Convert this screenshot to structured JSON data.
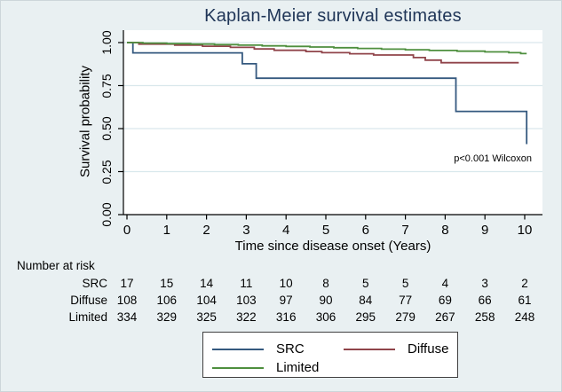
{
  "title": "Kaplan-Meier survival estimates",
  "annotation": "p<0.001 Wilcoxon",
  "colors": {
    "background": "#e9f0f2",
    "plot_background": "#ffffff",
    "gridline": "#d9e8ec",
    "title": "#1f3557",
    "src": "#35597f",
    "diffuse": "#90444a",
    "limited": "#4e8f3e"
  },
  "chart_data": {
    "type": "line",
    "subtype": "kaplan-meier-step",
    "title": "Kaplan-Meier survival estimates",
    "xlabel": "Time since disease onset (Years)",
    "ylabel": "Survival probability",
    "xlim": [
      0,
      10.45
    ],
    "ylim": [
      0,
      1.0
    ],
    "x_ticks": [
      "0",
      "1",
      "2",
      "3",
      "4",
      "5",
      "6",
      "7",
      "8",
      "9",
      "10"
    ],
    "y_ticks": [
      {
        "label": "1.00",
        "value": 1.0
      },
      {
        "label": "0.75",
        "value": 0.75
      },
      {
        "label": "0.50",
        "value": 0.5
      },
      {
        "label": "0.25",
        "value": 0.25
      },
      {
        "label": "0.00",
        "value": 0.0
      }
    ],
    "grid": "horizontal",
    "annotation": {
      "text": "p<0.001 Wilcoxon",
      "x": 10.2,
      "y": 0.3
    },
    "series": [
      {
        "name": "SRC",
        "color": "#35597f",
        "points": [
          [
            0,
            1.0
          ],
          [
            0.15,
            1.0
          ],
          [
            0.15,
            0.94
          ],
          [
            2.9,
            0.94
          ],
          [
            2.9,
            0.877
          ],
          [
            3.25,
            0.877
          ],
          [
            3.25,
            0.793
          ],
          [
            8.27,
            0.793
          ],
          [
            8.27,
            0.6
          ],
          [
            10.05,
            0.6
          ],
          [
            10.05,
            0.41
          ]
        ]
      },
      {
        "name": "Diffuse",
        "color": "#90444a",
        "points": [
          [
            0,
            1.0
          ],
          [
            0.3,
            1.0
          ],
          [
            0.3,
            0.991
          ],
          [
            1.2,
            0.991
          ],
          [
            1.2,
            0.985
          ],
          [
            1.9,
            0.985
          ],
          [
            1.9,
            0.979
          ],
          [
            2.6,
            0.979
          ],
          [
            2.6,
            0.972
          ],
          [
            3.2,
            0.972
          ],
          [
            3.2,
            0.963
          ],
          [
            3.7,
            0.963
          ],
          [
            3.7,
            0.955
          ],
          [
            4.5,
            0.955
          ],
          [
            4.5,
            0.948
          ],
          [
            4.9,
            0.948
          ],
          [
            4.9,
            0.941
          ],
          [
            5.6,
            0.941
          ],
          [
            5.6,
            0.935
          ],
          [
            6.2,
            0.935
          ],
          [
            6.2,
            0.928
          ],
          [
            7.2,
            0.928
          ],
          [
            7.2,
            0.913
          ],
          [
            7.5,
            0.913
          ],
          [
            7.5,
            0.898
          ],
          [
            7.9,
            0.898
          ],
          [
            7.9,
            0.883
          ],
          [
            9.85,
            0.883
          ]
        ]
      },
      {
        "name": "Limited",
        "color": "#4e8f3e",
        "points": [
          [
            0,
            1.0
          ],
          [
            0.4,
            1.0
          ],
          [
            0.4,
            0.997
          ],
          [
            1.0,
            0.997
          ],
          [
            1.0,
            0.994
          ],
          [
            1.6,
            0.994
          ],
          [
            1.6,
            0.991
          ],
          [
            2.2,
            0.991
          ],
          [
            2.2,
            0.988
          ],
          [
            2.8,
            0.988
          ],
          [
            2.8,
            0.985
          ],
          [
            3.4,
            0.985
          ],
          [
            3.4,
            0.981
          ],
          [
            4.0,
            0.981
          ],
          [
            4.0,
            0.978
          ],
          [
            4.6,
            0.978
          ],
          [
            4.6,
            0.974
          ],
          [
            5.2,
            0.974
          ],
          [
            5.2,
            0.97
          ],
          [
            5.8,
            0.97
          ],
          [
            5.8,
            0.966
          ],
          [
            6.4,
            0.966
          ],
          [
            6.4,
            0.962
          ],
          [
            7.0,
            0.962
          ],
          [
            7.0,
            0.958
          ],
          [
            7.6,
            0.958
          ],
          [
            7.6,
            0.954
          ],
          [
            8.3,
            0.954
          ],
          [
            8.3,
            0.95
          ],
          [
            9.0,
            0.95
          ],
          [
            9.0,
            0.946
          ],
          [
            9.6,
            0.946
          ],
          [
            9.6,
            0.941
          ],
          [
            9.9,
            0.941
          ],
          [
            9.9,
            0.936
          ],
          [
            10.05,
            0.936
          ]
        ]
      }
    ],
    "risk_table": {
      "title": "Number at risk",
      "time_points": [
        0,
        1,
        2,
        3,
        4,
        5,
        6,
        7,
        8,
        9,
        10
      ],
      "rows": [
        {
          "label": "SRC",
          "values": [
            "17",
            "15",
            "14",
            "11",
            "10",
            "8",
            "5",
            "5",
            "4",
            "3",
            "2"
          ]
        },
        {
          "label": "Diffuse",
          "values": [
            "108",
            "106",
            "104",
            "103",
            "97",
            "90",
            "84",
            "77",
            "69",
            "66",
            "61"
          ]
        },
        {
          "label": "Limited",
          "values": [
            "334",
            "329",
            "325",
            "322",
            "316",
            "306",
            "295",
            "279",
            "267",
            "258",
            "248"
          ]
        }
      ]
    },
    "legend": {
      "position": "bottom-center",
      "entries": [
        "SRC",
        "Diffuse",
        "Limited"
      ]
    }
  }
}
